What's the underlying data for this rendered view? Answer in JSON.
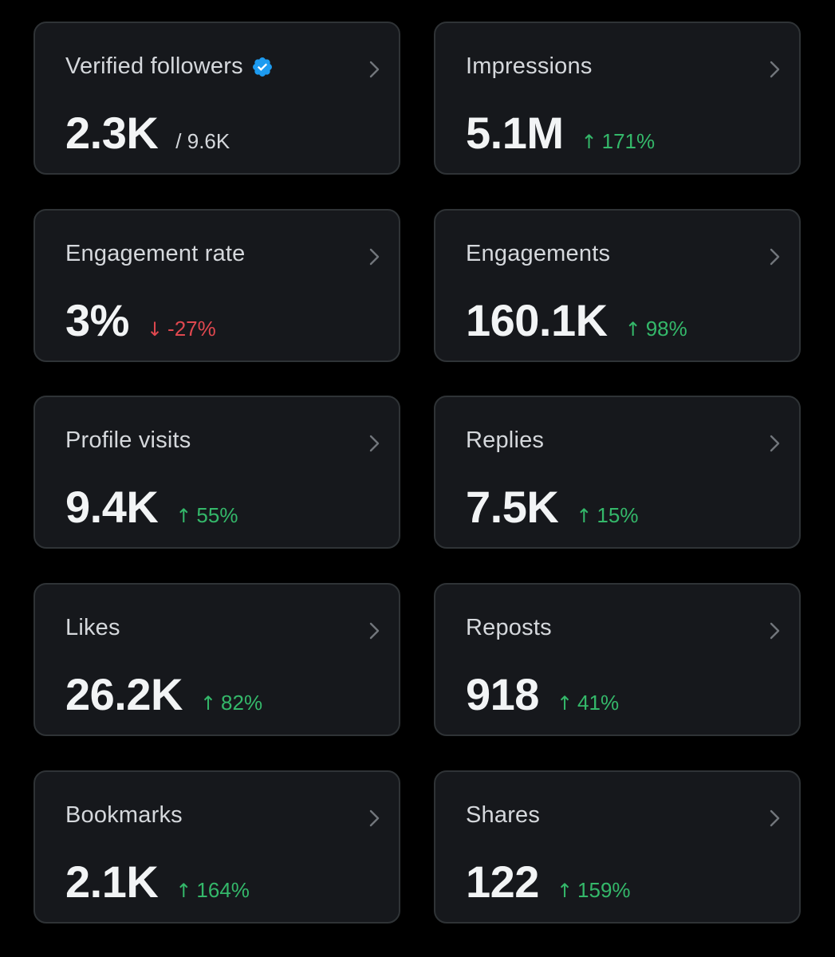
{
  "colors": {
    "background": "#000000",
    "card_background": "#16181c",
    "card_border": "#2f3336",
    "positive": "#34b86a",
    "negative": "#e0484f",
    "verified_badge": "#1d9bf0"
  },
  "cards": [
    {
      "title": "Verified followers",
      "value": "2.3K",
      "sub": "/ 9.6K",
      "badge_icon": "verified-badge-icon",
      "chevron_icon": "chevron-right-icon"
    },
    {
      "title": "Impressions",
      "value": "5.1M",
      "change_arrow": "↑",
      "change": "171%",
      "trend": "up",
      "chevron_icon": "chevron-right-icon"
    },
    {
      "title": "Engagement rate",
      "value": "3%",
      "change_arrow": "↓",
      "change": "-27%",
      "trend": "down",
      "chevron_icon": "chevron-right-icon"
    },
    {
      "title": "Engagements",
      "value": "160.1K",
      "change_arrow": "↑",
      "change": "98%",
      "trend": "up",
      "chevron_icon": "chevron-right-icon"
    },
    {
      "title": "Profile visits",
      "value": "9.4K",
      "change_arrow": "↑",
      "change": "55%",
      "trend": "up",
      "chevron_icon": "chevron-right-icon"
    },
    {
      "title": "Replies",
      "value": "7.5K",
      "change_arrow": "↑",
      "change": "15%",
      "trend": "up",
      "chevron_icon": "chevron-right-icon"
    },
    {
      "title": "Likes",
      "value": "26.2K",
      "change_arrow": "↑",
      "change": "82%",
      "trend": "up",
      "chevron_icon": "chevron-right-icon"
    },
    {
      "title": "Reposts",
      "value": "918",
      "change_arrow": "↑",
      "change": "41%",
      "trend": "up",
      "chevron_icon": "chevron-right-icon"
    },
    {
      "title": "Bookmarks",
      "value": "2.1K",
      "change_arrow": "↑",
      "change": "164%",
      "trend": "up",
      "chevron_icon": "chevron-right-icon"
    },
    {
      "title": "Shares",
      "value": "122",
      "change_arrow": "↑",
      "change": "159%",
      "trend": "up",
      "chevron_icon": "chevron-right-icon"
    }
  ]
}
